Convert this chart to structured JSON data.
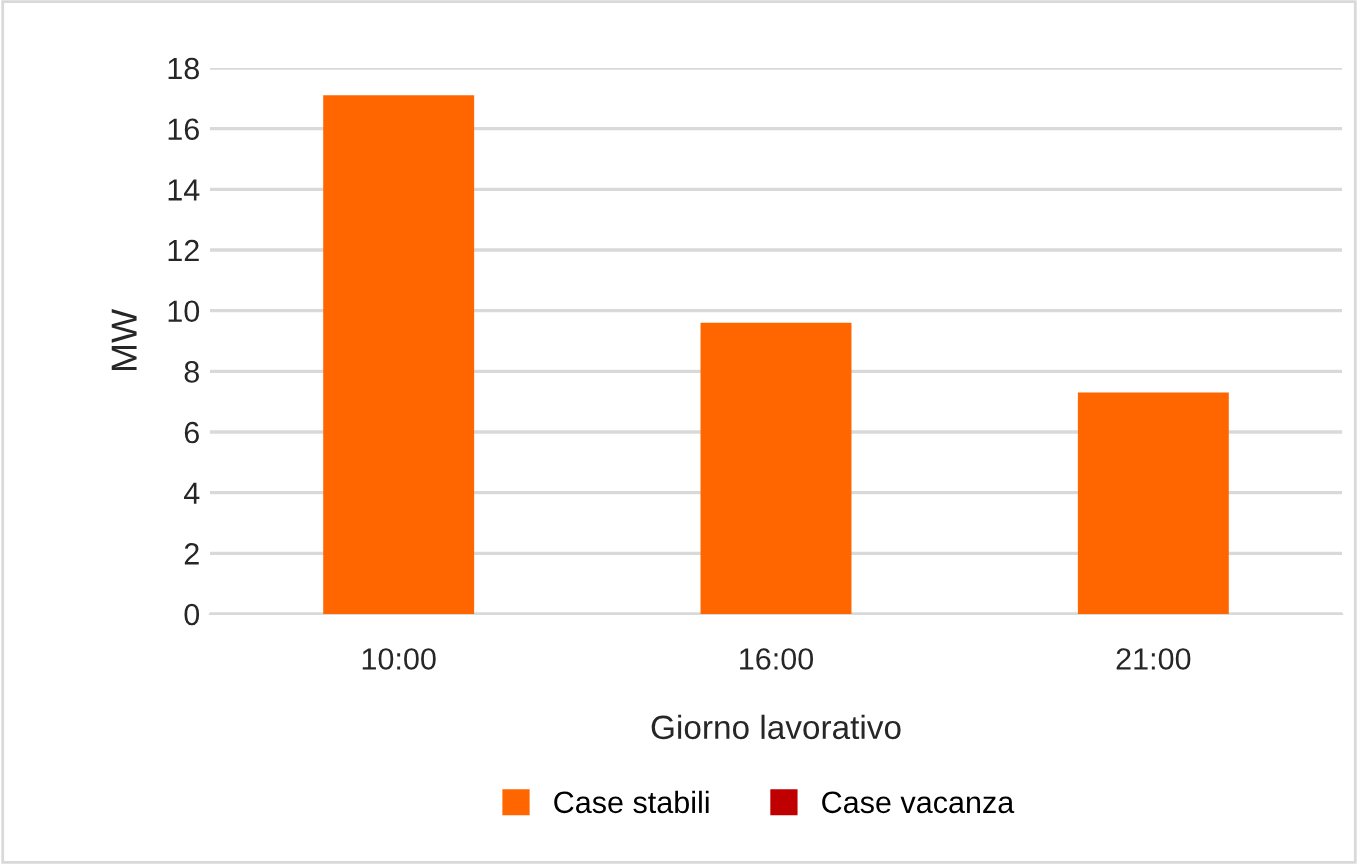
{
  "chart_data": {
    "type": "bar",
    "ylabel": "MW",
    "xlabel": "Giorno lavorativo",
    "categories": [
      "10:00",
      "16:00",
      "21:00"
    ],
    "series": [
      {
        "name": "Case stabili",
        "color": "#ff6600",
        "values": [
          17.1,
          9.6,
          7.3
        ]
      },
      {
        "name": "Case vacanza",
        "color": "#c00000",
        "values": [
          null,
          null,
          null
        ]
      }
    ],
    "ylim": [
      0,
      18
    ],
    "yticks": [
      0,
      2,
      4,
      6,
      8,
      10,
      12,
      14,
      16,
      18
    ],
    "grid": "y",
    "legend": "bottom"
  }
}
